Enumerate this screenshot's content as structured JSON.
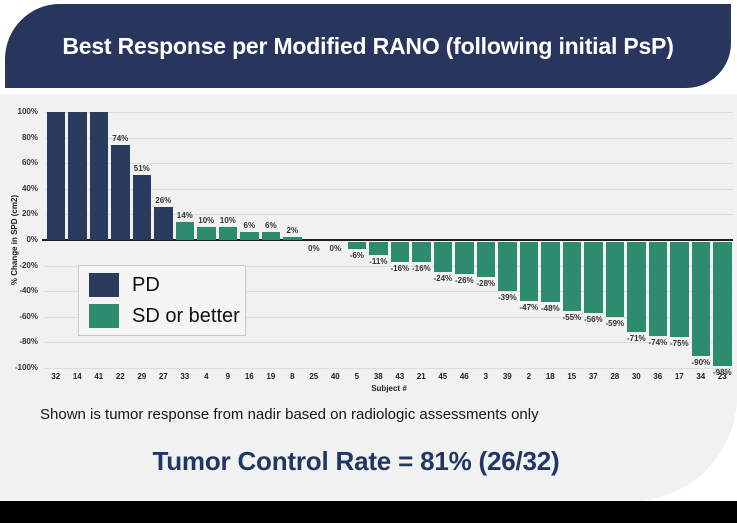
{
  "header": {
    "title": "Best Response per Modified RANO (following initial PsP)"
  },
  "chart_data": {
    "type": "bar",
    "title": "Best Response per Modified RANO (following initial PsP)",
    "xlabel": "Subject #",
    "ylabel": "% Change in SPD (cm2)",
    "ylim": [
      -100,
      100
    ],
    "ytick_step": 20,
    "ytick_labels": [
      "100%",
      "80%",
      "60%",
      "40%",
      "20%",
      "0%",
      "-20%",
      "-40%",
      "-60%",
      "-80%",
      "-100%"
    ],
    "grid": true,
    "legend_position": "upper-left",
    "categories": [
      "32",
      "14",
      "41",
      "22",
      "29",
      "27",
      "33",
      "4",
      "9",
      "16",
      "19",
      "8",
      "25",
      "40",
      "5",
      "38",
      "43",
      "21",
      "45",
      "46",
      "3",
      "39",
      "2",
      "18",
      "15",
      "37",
      "28",
      "30",
      "36",
      "17",
      "34",
      "23"
    ],
    "values": [
      100,
      100,
      100,
      74,
      51,
      26,
      14,
      10,
      10,
      6,
      6,
      2,
      0,
      0,
      -6,
      -11,
      -16,
      -16,
      -24,
      -26,
      -28,
      -39,
      -47,
      -48,
      -55,
      -56,
      -59,
      -71,
      -74,
      -75,
      -90,
      -98
    ],
    "bar_labels": [
      "",
      "",
      "",
      "74%",
      "51%",
      "26%",
      "14%",
      "10%",
      "10%",
      "6%",
      "6%",
      "2%",
      "0%",
      "0%",
      "-6%",
      "-11%",
      "-16%",
      "-16%",
      "-24%",
      "-26%",
      "-28%",
      "-39%",
      "-47%",
      "-48%",
      "-55%",
      "-56%",
      "-59%",
      "-71%",
      "-74%",
      "-75%",
      "-90%",
      "-98%"
    ],
    "groups": [
      "PD",
      "PD",
      "PD",
      "PD",
      "PD",
      "PD",
      "SD or better",
      "SD or better",
      "SD or better",
      "SD or better",
      "SD or better",
      "SD or better",
      "SD or better",
      "SD or better",
      "SD or better",
      "SD or better",
      "SD or better",
      "SD or better",
      "SD or better",
      "SD or better",
      "SD or better",
      "SD or better",
      "SD or better",
      "SD or better",
      "SD or better",
      "SD or better",
      "SD or better",
      "SD or better",
      "SD or better",
      "SD or better",
      "SD or better",
      "SD or better"
    ],
    "series": [
      {
        "name": "PD",
        "color": "#2b3a5f",
        "count": 6
      },
      {
        "name": "SD or better",
        "color": "#2e8c6e",
        "count": 26
      }
    ]
  },
  "footnote": "Shown is tumor response from nadir based on radiologic assessments only",
  "summary": {
    "tumor_control_rate": "Tumor Control Rate = 81% (26/32)"
  },
  "colors": {
    "header_bg": "#28355c",
    "card_bg": "#f1f1f2",
    "pd_bar": "#2b3a5f",
    "sd_bar": "#2e8c6e",
    "summary_text": "#1e3765",
    "bottom_bar": "#000000"
  }
}
